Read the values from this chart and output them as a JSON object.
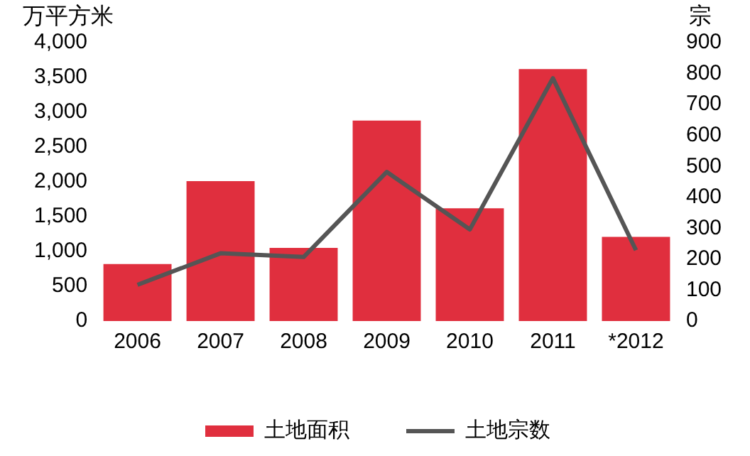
{
  "chart_data": {
    "type": "bar",
    "categories": [
      "2006",
      "2007",
      "2008",
      "2009",
      "2010",
      "2011",
      "*2012"
    ],
    "ylabel": "万平方米",
    "y2label": "宗",
    "ylim": [
      0,
      4000
    ],
    "yticks": [
      0,
      {
        "value": 500,
        "label": "500"
      },
      {
        "value": 1000,
        "label": "1,000"
      },
      {
        "value": 1500,
        "label": "1,500"
      },
      {
        "value": 2000,
        "label": "2,000"
      },
      {
        "value": 2500,
        "label": "2,500"
      },
      {
        "value": 3000,
        "label": "3,000"
      },
      {
        "value": 3500,
        "label": "3,500"
      },
      {
        "value": 4000,
        "label": "4,000"
      }
    ],
    "y2lim": [
      0,
      900
    ],
    "y2ticks": [
      0,
      100,
      200,
      300,
      400,
      500,
      600,
      700,
      800,
      900
    ],
    "series": [
      {
        "name": "土地面积",
        "color": "#e02f3e",
        "values": [
          820,
          2010,
          1050,
          2880,
          1620,
          3620,
          1210
        ]
      },
      {
        "name": "土地宗数",
        "type": "line",
        "axis": "y2",
        "color": "#555555",
        "values": [
          117,
          219,
          207,
          482,
          296,
          785,
          229
        ]
      }
    ],
    "legend": "bottom",
    "grid": false,
    "marker": "none"
  }
}
